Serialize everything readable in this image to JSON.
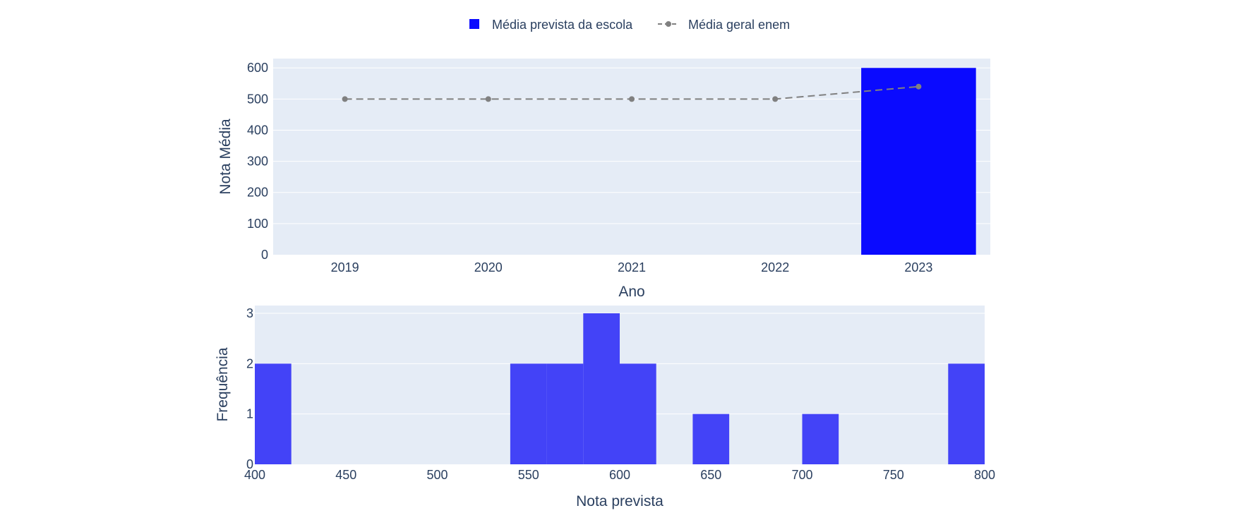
{
  "chart_data": [
    {
      "type": "bar",
      "xlabel": "Ano",
      "ylabel": "Nota Média",
      "ylim": [
        0,
        630
      ],
      "yticks": [
        0,
        100,
        200,
        300,
        400,
        500,
        600
      ],
      "categories": [
        "2019",
        "2020",
        "2021",
        "2022",
        "2023"
      ],
      "grid": true,
      "legend_position": "top-center",
      "series": [
        {
          "name": "Média prevista da escola",
          "kind": "bar",
          "color": "#0a0aff",
          "values": [
            null,
            null,
            null,
            null,
            600
          ]
        },
        {
          "name": "Média geral enem",
          "kind": "line",
          "style": "dashed",
          "marker": "circle",
          "color": "#808080",
          "values": [
            500,
            500,
            500,
            500,
            540
          ]
        }
      ]
    },
    {
      "type": "bar",
      "subtype": "histogram",
      "xlabel": "Nota prevista",
      "ylabel": "Frequência",
      "xlim": [
        400,
        800
      ],
      "ylim": [
        0,
        3
      ],
      "xticks": [
        400,
        450,
        500,
        550,
        600,
        650,
        700,
        750,
        800
      ],
      "yticks": [
        0,
        1,
        2,
        3
      ],
      "color": "#4343f7",
      "bin_width": 20,
      "bins": [
        {
          "start": 400,
          "end": 420,
          "count": 2
        },
        {
          "start": 540,
          "end": 560,
          "count": 2
        },
        {
          "start": 560,
          "end": 580,
          "count": 2
        },
        {
          "start": 580,
          "end": 600,
          "count": 3
        },
        {
          "start": 600,
          "end": 620,
          "count": 2
        },
        {
          "start": 640,
          "end": 660,
          "count": 1
        },
        {
          "start": 700,
          "end": 720,
          "count": 1
        },
        {
          "start": 780,
          "end": 800,
          "count": 2
        }
      ]
    }
  ]
}
